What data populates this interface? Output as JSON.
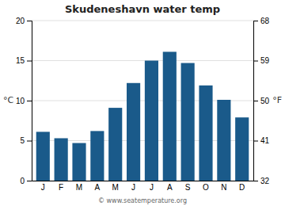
{
  "chart_data": {
    "type": "bar",
    "title": "Skudeneshavn water temp",
    "categories": [
      "J",
      "F",
      "M",
      "A",
      "M",
      "J",
      "J",
      "A",
      "S",
      "O",
      "N",
      "D"
    ],
    "values": [
      6.1,
      5.3,
      4.7,
      6.2,
      9.1,
      12.2,
      15.0,
      16.1,
      14.7,
      11.9,
      10.1,
      7.9
    ],
    "color": "#1a5a8a",
    "ylim": [
      0,
      20
    ],
    "yticks": [
      0,
      5,
      10,
      15,
      20
    ],
    "y2lim": [
      32,
      68
    ],
    "y2ticks": [
      32,
      41,
      50,
      59,
      68
    ],
    "y_label": "°C",
    "y2_label": "°F",
    "grid": true,
    "annotations": [
      "© www.seatemperature.org"
    ]
  }
}
